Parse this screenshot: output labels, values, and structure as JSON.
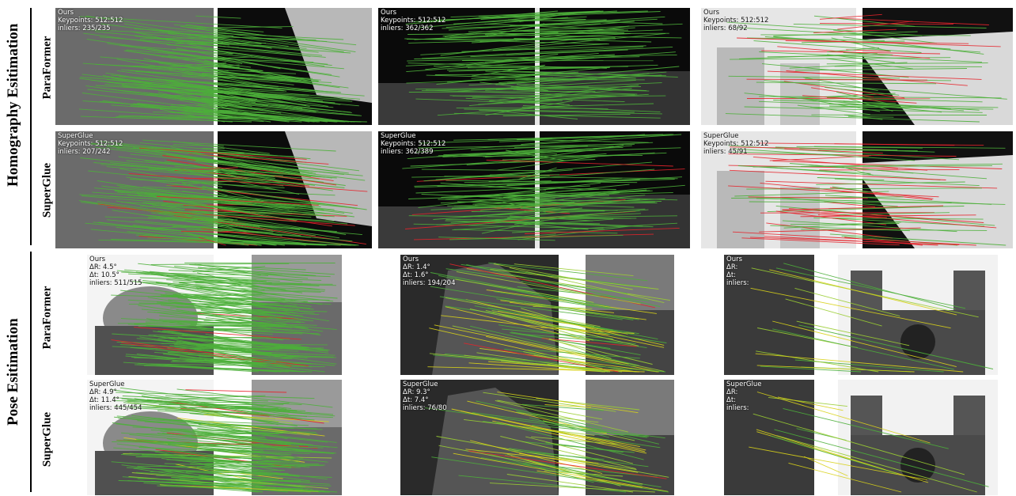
{
  "sections": {
    "homography": {
      "label": "Homography Esitimation",
      "method_a": "ParaFormer",
      "method_b": "SuperGlue"
    },
    "pose": {
      "label": "Pose Esitimation",
      "method_a": "ParaFormer",
      "method_b": "SuperGlue"
    }
  },
  "homography_panels": [
    {
      "lines": [
        "Ours",
        "Keypoints: 512:512",
        "inliers: 235/235"
      ]
    },
    {
      "lines": [
        "Ours",
        "Keypoints: 512:512",
        "inliers: 362/362"
      ]
    },
    {
      "lines": [
        "Ours",
        "Keypoints: 512:512",
        "inliers: 68/92"
      ]
    },
    {
      "lines": [
        "SuperGlue",
        "Keypoints: 512:512",
        "inliers: 207/242"
      ]
    },
    {
      "lines": [
        "SuperGlue",
        "Keypoints: 512:512",
        "inliers: 362/389"
      ]
    },
    {
      "lines": [
        "SuperGlue",
        "Keypoints: 512:512",
        "inliers: 45/91"
      ]
    }
  ],
  "pose_panels": [
    {
      "lines": [
        "Ours",
        "ΔR: 4.5°",
        "Δt: 10.5°",
        "inliers: 511/515"
      ]
    },
    {
      "lines": [
        "Ours",
        "ΔR: 1.4°",
        "Δt: 1.6°",
        "inliers: 194/204"
      ]
    },
    {
      "lines": [
        "Ours",
        "ΔR:",
        "Δt:",
        "inliers:"
      ]
    },
    {
      "lines": [
        "SuperGlue",
        "ΔR: 4.9°",
        "Δt: 11.4°",
        "inliers: 445/454"
      ]
    },
    {
      "lines": [
        "SuperGlue",
        "ΔR: 9.3°",
        "Δt: 7.4°",
        "inliers: 76/80"
      ]
    },
    {
      "lines": [
        "SuperGlue",
        "ΔR:",
        "Δt:",
        "inliers:"
      ]
    }
  ],
  "colors": {
    "inlier": "#4caf3a",
    "outlier": "#e5242b",
    "mid": "#d8d21a"
  }
}
